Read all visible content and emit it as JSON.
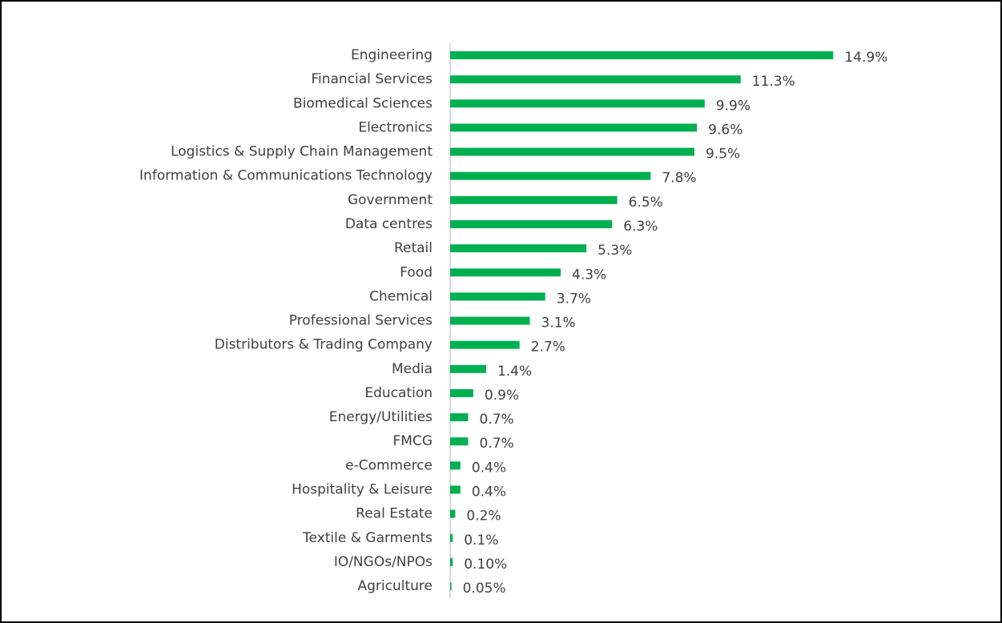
{
  "chart_data": {
    "type": "bar",
    "orientation": "horizontal",
    "color": "#00b050",
    "categories": [
      "Engineering",
      "Financial Services",
      "Biomedical Sciences",
      "Electronics",
      "Logistics & Supply Chain Management",
      "Information & Communications Technology",
      "Government",
      "Data centres",
      "Retail",
      "Food",
      "Chemical",
      "Professional Services",
      "Distributors & Trading Company",
      "Media",
      "Education",
      "Energy/Utilities",
      "FMCG",
      "e-Commerce",
      "Hospitality & Leisure",
      "Real Estate",
      "Textile & Garments",
      "IO/NGOs/NPOs",
      "Agriculture"
    ],
    "values": [
      14.9,
      11.3,
      9.9,
      9.6,
      9.5,
      7.8,
      6.5,
      6.3,
      5.3,
      4.3,
      3.7,
      3.1,
      2.7,
      1.4,
      0.9,
      0.7,
      0.7,
      0.4,
      0.4,
      0.2,
      0.1,
      0.1,
      0.05
    ],
    "value_labels": [
      "14.9%",
      "11.3%",
      "9.9%",
      "9.6%",
      "9.5%",
      "7.8%",
      "6.5%",
      "6.3%",
      "5.3%",
      "4.3%",
      "3.7%",
      "3.1%",
      "2.7%",
      "1.4%",
      "0.9%",
      "0.7%",
      "0.7%",
      "0.4%",
      "0.4%",
      "0.2%",
      "0.1%",
      "0.10%",
      "0.05%"
    ]
  }
}
